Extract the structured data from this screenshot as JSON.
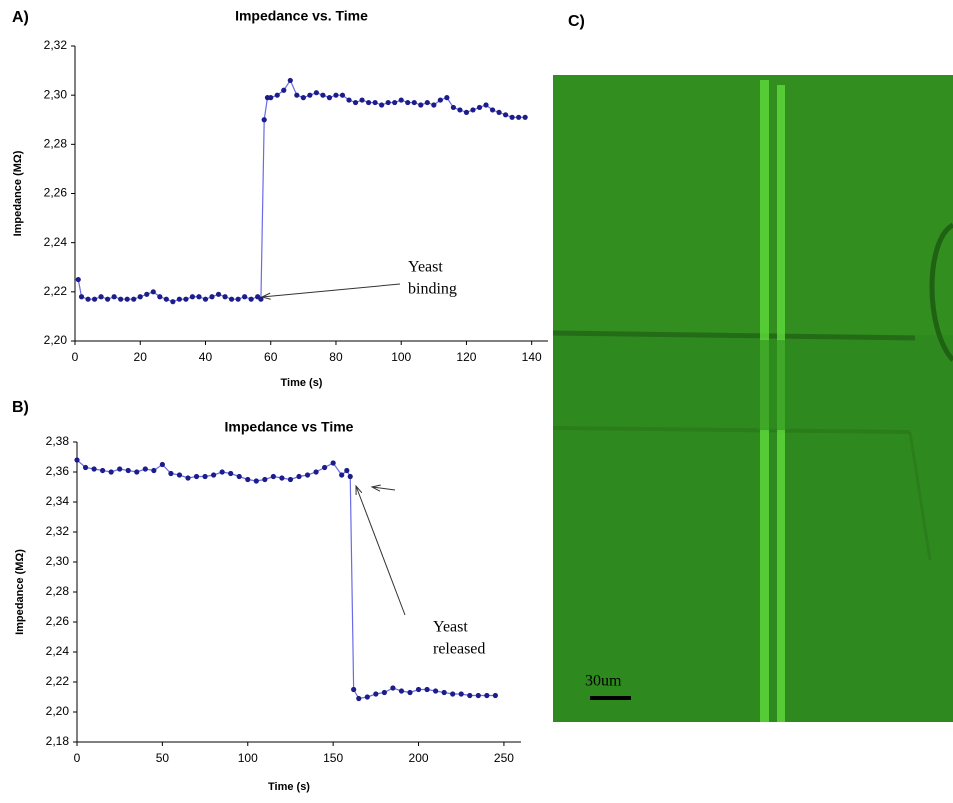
{
  "chart_data": [
    {
      "type": "line",
      "panel_label": "A)",
      "title": "Impedance vs. Time",
      "x_label": "Time (s)",
      "y_label": "Impedance (MΩ)",
      "annotation": [
        "Yeast",
        "binding"
      ],
      "xlim": [
        0,
        145
      ],
      "xticks": [
        0,
        20,
        40,
        60,
        80,
        100,
        120,
        140
      ],
      "ylim": [
        2.2,
        2.32
      ],
      "yticks": [
        {
          "value": 2.2,
          "label": "2,20"
        },
        {
          "value": 2.22,
          "label": "2,22"
        },
        {
          "value": 2.24,
          "label": "2,24"
        },
        {
          "value": 2.26,
          "label": "2,26"
        },
        {
          "value": 2.28,
          "label": "2,28"
        },
        {
          "value": 2.3,
          "label": "2,30"
        },
        {
          "value": 2.32,
          "label": "2,32"
        }
      ],
      "grid": false,
      "series": [
        {
          "color": "#1c1c8a",
          "x": [
            1,
            2,
            4,
            6,
            8,
            10,
            12,
            14,
            16,
            18,
            20,
            22,
            24,
            26,
            28,
            30,
            32,
            34,
            36,
            38,
            40,
            42,
            44,
            46,
            48,
            50,
            52,
            54,
            56,
            57,
            58,
            59,
            60,
            62,
            64,
            66,
            68,
            70,
            72,
            74,
            76,
            78,
            80,
            82,
            84,
            86,
            88,
            90,
            92,
            94,
            96,
            98,
            100,
            102,
            104,
            106,
            108,
            110,
            112,
            114,
            116,
            118,
            120,
            122,
            124,
            126,
            128,
            130,
            132,
            134,
            136,
            138
          ],
          "values": [
            2.225,
            2.218,
            2.217,
            2.217,
            2.218,
            2.217,
            2.218,
            2.217,
            2.217,
            2.217,
            2.218,
            2.219,
            2.22,
            2.218,
            2.217,
            2.216,
            2.217,
            2.217,
            2.218,
            2.218,
            2.217,
            2.218,
            2.219,
            2.218,
            2.217,
            2.217,
            2.218,
            2.217,
            2.218,
            2.217,
            2.29,
            2.299,
            2.299,
            2.3,
            2.302,
            2.306,
            2.3,
            2.299,
            2.3,
            2.301,
            2.3,
            2.299,
            2.3,
            2.3,
            2.298,
            2.297,
            2.298,
            2.297,
            2.297,
            2.296,
            2.297,
            2.297,
            2.298,
            2.297,
            2.297,
            2.296,
            2.297,
            2.296,
            2.298,
            2.299,
            2.295,
            2.294,
            2.293,
            2.294,
            2.295,
            2.296,
            2.294,
            2.293,
            2.292,
            2.291,
            2.291,
            2.291
          ]
        }
      ]
    },
    {
      "type": "line",
      "panel_label": "B)",
      "title": "Impedance vs Time",
      "x_label": "Time (s)",
      "y_label": "Impedance (MΩ)",
      "annotation": [
        "Yeast",
        "released"
      ],
      "xlim": [
        0,
        260
      ],
      "xticks": [
        0,
        50,
        100,
        150,
        200,
        250
      ],
      "ylim": [
        2.18,
        2.38
      ],
      "yticks": [
        {
          "value": 2.18,
          "label": "2,18"
        },
        {
          "value": 2.2,
          "label": "2,20"
        },
        {
          "value": 2.22,
          "label": "2,22"
        },
        {
          "value": 2.24,
          "label": "2,24"
        },
        {
          "value": 2.26,
          "label": "2,26"
        },
        {
          "value": 2.28,
          "label": "2,28"
        },
        {
          "value": 2.3,
          "label": "2,30"
        },
        {
          "value": 2.32,
          "label": "2,32"
        },
        {
          "value": 2.34,
          "label": "2,34"
        },
        {
          "value": 2.36,
          "label": "2,36"
        },
        {
          "value": 2.38,
          "label": "2,38"
        }
      ],
      "grid": false,
      "series": [
        {
          "color": "#1c1c8a",
          "x": [
            0,
            5,
            10,
            15,
            20,
            25,
            30,
            35,
            40,
            45,
            50,
            55,
            60,
            65,
            70,
            75,
            80,
            85,
            90,
            95,
            100,
            105,
            110,
            115,
            120,
            125,
            130,
            135,
            140,
            145,
            150,
            155,
            158,
            160,
            162,
            165,
            170,
            175,
            180,
            185,
            190,
            195,
            200,
            205,
            210,
            215,
            220,
            225,
            230,
            235,
            240,
            245
          ],
          "values": [
            2.368,
            2.363,
            2.362,
            2.361,
            2.36,
            2.362,
            2.361,
            2.36,
            2.362,
            2.361,
            2.365,
            2.359,
            2.358,
            2.356,
            2.357,
            2.357,
            2.358,
            2.36,
            2.359,
            2.357,
            2.355,
            2.354,
            2.355,
            2.357,
            2.356,
            2.355,
            2.357,
            2.358,
            2.36,
            2.363,
            2.366,
            2.358,
            2.361,
            2.357,
            2.215,
            2.209,
            2.21,
            2.212,
            2.213,
            2.216,
            2.214,
            2.213,
            2.215,
            2.215,
            2.214,
            2.213,
            2.212,
            2.212,
            2.211,
            2.211,
            2.211,
            2.211
          ]
        }
      ]
    }
  ],
  "image": {
    "panel_label": "C)",
    "scale_label": "30um"
  }
}
